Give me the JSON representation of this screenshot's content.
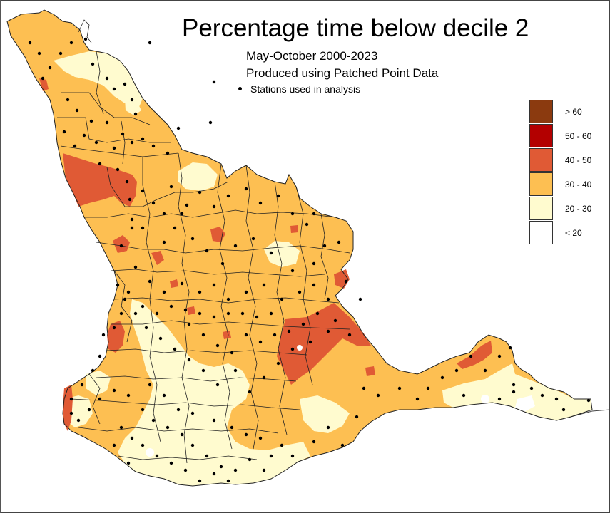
{
  "title": "Percentage time below decile 2",
  "subtitle_period": "May-October 2000-2023",
  "subtitle_source": "Produced using Patched Point Data",
  "stations_key_label": "Stations used in analysis",
  "legend": [
    {
      "label": "> 60",
      "color": "#8b3a0f"
    },
    {
      "label": "50 - 60",
      "color": "#b30000"
    },
    {
      "label": "40 - 50",
      "color": "#e05a35"
    },
    {
      "label": "30 - 40",
      "color": "#fdbf52"
    },
    {
      "label": "20 - 30",
      "color": "#fffbcf"
    },
    {
      "label": "< 20",
      "color": "#ffffff"
    }
  ]
}
